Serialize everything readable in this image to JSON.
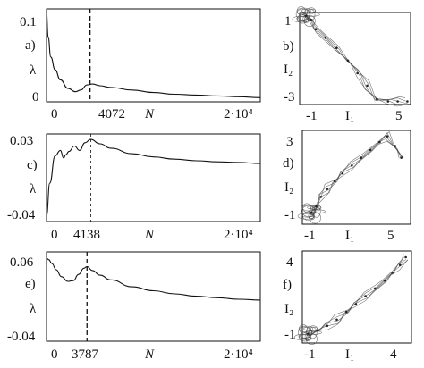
{
  "chart_data": [
    {
      "panel": "a)",
      "type": "line",
      "ylabel": "λ",
      "xlabel": "N",
      "y_ticks": [
        "0.1",
        "0"
      ],
      "x_ticks": [
        "0",
        "4072",
        "2·10⁴"
      ],
      "ylim": [
        -0.005,
        0.105
      ],
      "xlim": [
        0,
        20000
      ],
      "marker_x": 4072,
      "x": [
        0,
        150,
        400,
        800,
        1300,
        2000,
        2700,
        3200,
        3800,
        4300,
        5000,
        6000,
        8000,
        10000,
        12000,
        14000,
        16000,
        18000,
        20000
      ],
      "y": [
        0.1,
        0.072,
        0.048,
        0.033,
        0.021,
        0.011,
        0.007,
        0.009,
        0.015,
        0.016,
        0.014,
        0.012,
        0.009,
        0.006,
        0.004,
        0.003,
        0.002,
        0.001,
        0.0
      ]
    },
    {
      "panel": "b)",
      "type": "scatter",
      "xlabel": "I₁",
      "ylabel": "I₂",
      "x_ticks": [
        "-1",
        "5"
      ],
      "y_ticks": [
        "1",
        "-3"
      ],
      "xlim": [
        -1.3,
        5.6
      ],
      "ylim": [
        -3.3,
        1.1
      ],
      "x": [
        -0.9,
        -0.6,
        -0.3,
        0.3,
        1.0,
        1.7,
        2.3,
        2.9,
        3.5,
        4.2,
        4.8,
        5.4
      ],
      "y": [
        0.95,
        0.75,
        0.3,
        -0.1,
        -0.6,
        -1.2,
        -1.8,
        -2.4,
        -3.05,
        -3.15,
        -3.15,
        -3.15
      ]
    },
    {
      "panel": "c)",
      "type": "line",
      "ylabel": "λ",
      "xlabel": "N",
      "y_ticks": [
        "0.03",
        "-0.04"
      ],
      "x_ticks": [
        "0",
        "4138",
        "2·10⁴"
      ],
      "ylim": [
        -0.045,
        0.035
      ],
      "xlim": [
        0,
        20000
      ],
      "marker_x": 4138,
      "x": [
        0,
        300,
        800,
        1300,
        1600,
        1800,
        2100,
        2600,
        3100,
        3600,
        4138,
        5000,
        6000,
        8000,
        10000,
        12000,
        14000,
        16000,
        18000,
        20000
      ],
      "y": [
        -0.04,
        -0.01,
        0.015,
        0.02,
        0.013,
        0.016,
        0.019,
        0.024,
        0.02,
        0.027,
        0.03,
        0.026,
        0.022,
        0.017,
        0.014,
        0.012,
        0.0105,
        0.0095,
        0.009,
        0.008
      ]
    },
    {
      "panel": "d)",
      "type": "scatter",
      "xlabel": "I₁",
      "ylabel": "I₂",
      "x_ticks": [
        "-1",
        "5"
      ],
      "y_ticks": [
        "3",
        "-1"
      ],
      "xlim": [
        -1.4,
        5.6
      ],
      "ylim": [
        -1.5,
        3.3
      ],
      "x": [
        -0.8,
        -0.5,
        -0.2,
        0.2,
        0.7,
        1.2,
        1.8,
        2.4,
        3.0,
        3.6,
        4.1,
        4.6,
        5.0
      ],
      "y": [
        -0.9,
        -0.6,
        -0.1,
        0.3,
        0.7,
        1.1,
        1.5,
        1.9,
        2.3,
        2.7,
        3.0,
        2.5,
        1.9
      ]
    },
    {
      "panel": "e)",
      "type": "line",
      "ylabel": "λ",
      "xlabel": "N",
      "y_ticks": [
        "0.06",
        "-0.04"
      ],
      "x_ticks": [
        "0",
        "3787",
        "2·10⁴"
      ],
      "ylim": [
        -0.045,
        0.07
      ],
      "xlim": [
        0,
        20000
      ],
      "marker_x": 3787,
      "x": [
        0,
        200,
        500,
        900,
        1400,
        2000,
        2500,
        3000,
        3500,
        3787,
        4300,
        5000,
        6000,
        8000,
        10000,
        12000,
        14000,
        16000,
        18000,
        20000
      ],
      "y": [
        0.062,
        0.06,
        0.055,
        0.047,
        0.038,
        0.032,
        0.033,
        0.041,
        0.049,
        0.051,
        0.046,
        0.04,
        0.034,
        0.025,
        0.02,
        0.016,
        0.013,
        0.011,
        0.009,
        0.008
      ]
    },
    {
      "panel": "f)",
      "type": "scatter",
      "xlabel": "I₁",
      "ylabel": "I₂",
      "x_ticks": [
        "-1",
        "4"
      ],
      "y_ticks": [
        "4",
        "-1"
      ],
      "xlim": [
        -1.3,
        4.4
      ],
      "ylim": [
        -1.6,
        4.3
      ],
      "x": [
        -1.0,
        -0.5,
        0.0,
        0.5,
        1.0,
        1.5,
        2.0,
        2.5,
        3.0,
        3.4,
        3.8,
        4.1
      ],
      "y": [
        -1.0,
        -0.8,
        -0.5,
        -0.1,
        0.4,
        0.9,
        1.4,
        1.9,
        2.4,
        2.9,
        3.4,
        3.9
      ]
    }
  ]
}
